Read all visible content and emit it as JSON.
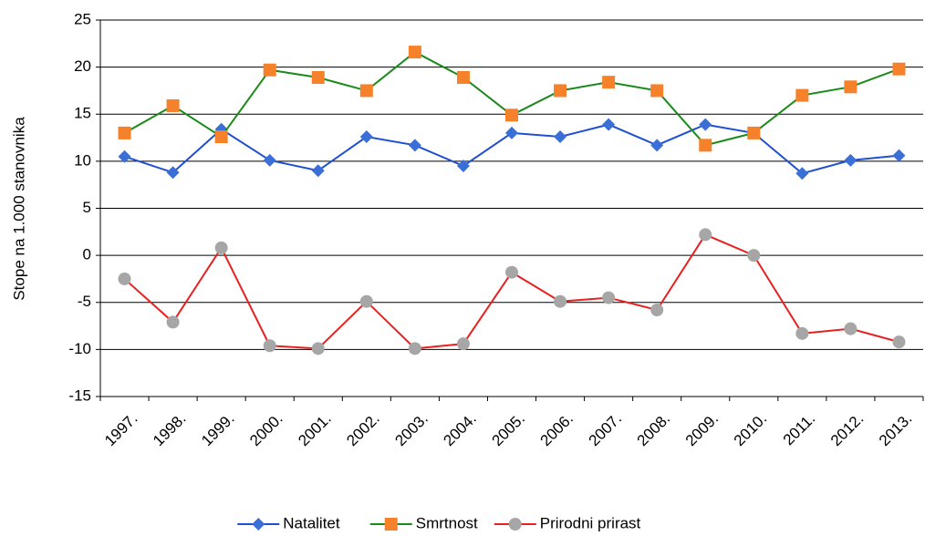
{
  "chart_data": {
    "type": "line",
    "y_label": "Stope na 1.000 stanovnika",
    "categories": [
      "1997.",
      "1998.",
      "1999.",
      "2000.",
      "2001.",
      "2002.",
      "2003.",
      "2004.",
      "2005.",
      "2006.",
      "2007.",
      "2008.",
      "2009.",
      "2010.",
      "2011.",
      "2012.",
      "2013."
    ],
    "series": [
      {
        "name": "Natalitet",
        "color": "#1f4fd1",
        "marker": "diamond",
        "marker_color": "#3a6fd8",
        "values": [
          10.5,
          8.8,
          13.4,
          10.1,
          9.0,
          12.6,
          11.7,
          9.5,
          13.0,
          12.6,
          13.9,
          11.7,
          13.9,
          13.0,
          8.7,
          10.1,
          10.6
        ]
      },
      {
        "name": "Smrtnost",
        "color": "#1a8a1a",
        "marker": "square",
        "marker_color": "#f5822a",
        "values": [
          13.0,
          15.9,
          12.6,
          19.7,
          18.9,
          17.5,
          21.6,
          18.9,
          14.9,
          17.5,
          18.4,
          17.5,
          11.7,
          13.0,
          17.0,
          17.9,
          19.8
        ]
      },
      {
        "name": "Prirodni prirast",
        "color": "#e82020",
        "marker": "circle",
        "marker_color": "#a6a6a6",
        "values": [
          -2.5,
          -7.1,
          0.8,
          -9.6,
          -9.9,
          -4.9,
          -9.9,
          -9.4,
          -1.8,
          -4.9,
          -4.5,
          -5.8,
          2.2,
          0.0,
          -8.3,
          -7.8,
          -9.2
        ]
      }
    ],
    "ylim": [
      -15,
      25
    ],
    "yticks": [
      -15,
      -10,
      -5,
      0,
      5,
      10,
      15,
      20,
      25
    ],
    "grid": true,
    "legend": "bottom"
  }
}
